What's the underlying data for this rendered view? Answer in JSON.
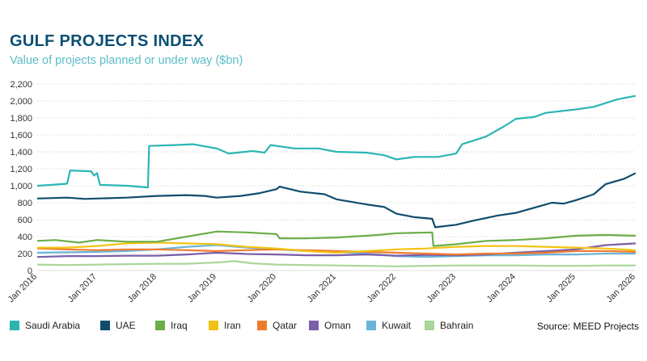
{
  "chart_data": {
    "type": "line",
    "title": "GULF PROJECTS INDEX",
    "subtitle": "Value of projects planned or under way ($bn)",
    "source": "Source: MEED Projects",
    "x_start": 2016.0,
    "x_end": 2026.0,
    "xlim": [
      2016.0,
      2026.0
    ],
    "ylim": [
      0,
      2200
    ],
    "y_ticks": [
      0,
      200,
      400,
      600,
      800,
      1000,
      1200,
      1400,
      1600,
      1800,
      2000,
      2200
    ],
    "y_tick_labels": [
      "0",
      "200",
      "400",
      "600",
      "800",
      "1,000",
      "1,200",
      "1,400",
      "1,600",
      "1,800",
      "2,000",
      "2,200"
    ],
    "x_ticks": [
      2016,
      2017,
      2018,
      2019,
      2020,
      2021,
      2022,
      2023,
      2024,
      2025,
      2026
    ],
    "x_tick_labels": [
      "Jan 2016",
      "Jan 2017",
      "Jan 2018",
      "Jan 2019",
      "Jan 2020",
      "Jan 2021",
      "Jan 2022",
      "Jan 2023",
      "Jan 2024",
      "Jan 2025",
      "Jan 2026"
    ],
    "grid": true,
    "legend_position": "bottom",
    "series": [
      {
        "name": "Saudi Arabia",
        "color": "#2bb5b3",
        "points": [
          [
            2016.0,
            1000
          ],
          [
            2016.25,
            1010
          ],
          [
            2016.5,
            1025
          ],
          [
            2016.55,
            1180
          ],
          [
            2016.9,
            1170
          ],
          [
            2016.95,
            1120
          ],
          [
            2017.0,
            1150
          ],
          [
            2017.05,
            1010
          ],
          [
            2017.5,
            1000
          ],
          [
            2017.85,
            980
          ],
          [
            2017.87,
            1470
          ],
          [
            2018.3,
            1480
          ],
          [
            2018.6,
            1490
          ],
          [
            2019.0,
            1440
          ],
          [
            2019.2,
            1380
          ],
          [
            2019.6,
            1410
          ],
          [
            2019.8,
            1390
          ],
          [
            2019.9,
            1480
          ],
          [
            2020.3,
            1440
          ],
          [
            2020.7,
            1440
          ],
          [
            2021.0,
            1400
          ],
          [
            2021.5,
            1390
          ],
          [
            2021.8,
            1360
          ],
          [
            2022.0,
            1310
          ],
          [
            2022.3,
            1340
          ],
          [
            2022.7,
            1340
          ],
          [
            2023.0,
            1380
          ],
          [
            2023.1,
            1490
          ],
          [
            2023.5,
            1580
          ],
          [
            2023.8,
            1700
          ],
          [
            2024.0,
            1790
          ],
          [
            2024.3,
            1810
          ],
          [
            2024.5,
            1860
          ],
          [
            2025.0,
            1900
          ],
          [
            2025.3,
            1930
          ],
          [
            2025.7,
            2020
          ],
          [
            2026.0,
            2060
          ]
        ]
      },
      {
        "name": "UAE",
        "color": "#0e4c6e",
        "points": [
          [
            2016.0,
            850
          ],
          [
            2016.5,
            860
          ],
          [
            2016.8,
            845
          ],
          [
            2017.0,
            850
          ],
          [
            2017.5,
            860
          ],
          [
            2018.0,
            880
          ],
          [
            2018.5,
            890
          ],
          [
            2018.8,
            880
          ],
          [
            2019.0,
            860
          ],
          [
            2019.4,
            880
          ],
          [
            2019.7,
            910
          ],
          [
            2020.0,
            960
          ],
          [
            2020.05,
            990
          ],
          [
            2020.4,
            930
          ],
          [
            2020.8,
            900
          ],
          [
            2021.0,
            840
          ],
          [
            2021.5,
            780
          ],
          [
            2021.8,
            750
          ],
          [
            2022.0,
            670
          ],
          [
            2022.3,
            630
          ],
          [
            2022.6,
            610
          ],
          [
            2022.65,
            510
          ],
          [
            2023.0,
            540
          ],
          [
            2023.3,
            590
          ],
          [
            2023.7,
            650
          ],
          [
            2024.0,
            680
          ],
          [
            2024.3,
            740
          ],
          [
            2024.6,
            800
          ],
          [
            2024.8,
            790
          ],
          [
            2025.0,
            830
          ],
          [
            2025.3,
            900
          ],
          [
            2025.5,
            1020
          ],
          [
            2025.8,
            1080
          ],
          [
            2026.0,
            1150
          ]
        ]
      },
      {
        "name": "Iraq",
        "color": "#6bad4a",
        "points": [
          [
            2016.0,
            350
          ],
          [
            2016.3,
            360
          ],
          [
            2016.7,
            330
          ],
          [
            2017.0,
            360
          ],
          [
            2017.5,
            340
          ],
          [
            2018.0,
            340
          ],
          [
            2018.5,
            400
          ],
          [
            2019.0,
            460
          ],
          [
            2019.5,
            450
          ],
          [
            2020.0,
            430
          ],
          [
            2020.05,
            380
          ],
          [
            2020.5,
            380
          ],
          [
            2021.0,
            390
          ],
          [
            2021.5,
            410
          ],
          [
            2021.7,
            420
          ],
          [
            2022.0,
            440
          ],
          [
            2022.6,
            450
          ],
          [
            2022.62,
            290
          ],
          [
            2023.0,
            310
          ],
          [
            2023.5,
            350
          ],
          [
            2024.0,
            360
          ],
          [
            2024.5,
            380
          ],
          [
            2025.0,
            410
          ],
          [
            2025.5,
            420
          ],
          [
            2026.0,
            410
          ]
        ]
      },
      {
        "name": "Iran",
        "color": "#f2c314",
        "points": [
          [
            2016.0,
            270
          ],
          [
            2016.5,
            270
          ],
          [
            2017.0,
            290
          ],
          [
            2017.5,
            320
          ],
          [
            2018.0,
            330
          ],
          [
            2018.5,
            320
          ],
          [
            2019.0,
            310
          ],
          [
            2019.5,
            280
          ],
          [
            2020.0,
            260
          ],
          [
            2020.5,
            230
          ],
          [
            2021.0,
            210
          ],
          [
            2021.5,
            230
          ],
          [
            2022.0,
            250
          ],
          [
            2022.5,
            260
          ],
          [
            2023.0,
            280
          ],
          [
            2023.5,
            290
          ],
          [
            2024.0,
            290
          ],
          [
            2024.5,
            280
          ],
          [
            2025.0,
            270
          ],
          [
            2025.5,
            260
          ],
          [
            2026.0,
            240
          ]
        ]
      },
      {
        "name": "Qatar",
        "color": "#ef7c2e",
        "points": [
          [
            2016.0,
            260
          ],
          [
            2016.5,
            250
          ],
          [
            2017.0,
            240
          ],
          [
            2017.5,
            250
          ],
          [
            2018.0,
            250
          ],
          [
            2018.5,
            240
          ],
          [
            2019.0,
            230
          ],
          [
            2019.5,
            240
          ],
          [
            2020.0,
            250
          ],
          [
            2020.5,
            240
          ],
          [
            2021.0,
            230
          ],
          [
            2021.5,
            220
          ],
          [
            2022.0,
            210
          ],
          [
            2022.5,
            200
          ],
          [
            2023.0,
            190
          ],
          [
            2023.5,
            200
          ],
          [
            2024.0,
            200
          ],
          [
            2024.5,
            210
          ],
          [
            2025.0,
            230
          ],
          [
            2025.5,
            230
          ],
          [
            2026.0,
            220
          ]
        ]
      },
      {
        "name": "Oman",
        "color": "#7a5ea8",
        "points": [
          [
            2016.0,
            160
          ],
          [
            2016.5,
            170
          ],
          [
            2017.0,
            170
          ],
          [
            2017.5,
            175
          ],
          [
            2018.0,
            175
          ],
          [
            2018.5,
            190
          ],
          [
            2019.0,
            210
          ],
          [
            2019.5,
            195
          ],
          [
            2020.0,
            190
          ],
          [
            2020.5,
            180
          ],
          [
            2021.0,
            180
          ],
          [
            2021.5,
            190
          ],
          [
            2022.0,
            175
          ],
          [
            2022.5,
            185
          ],
          [
            2023.0,
            180
          ],
          [
            2023.5,
            190
          ],
          [
            2024.0,
            210
          ],
          [
            2024.5,
            230
          ],
          [
            2025.0,
            250
          ],
          [
            2025.5,
            300
          ],
          [
            2026.0,
            320
          ]
        ]
      },
      {
        "name": "Kuwait",
        "color": "#6ab4d9",
        "points": [
          [
            2016.0,
            210
          ],
          [
            2016.5,
            215
          ],
          [
            2017.0,
            220
          ],
          [
            2017.5,
            230
          ],
          [
            2018.0,
            250
          ],
          [
            2018.5,
            280
          ],
          [
            2019.0,
            300
          ],
          [
            2019.5,
            270
          ],
          [
            2020.0,
            250
          ],
          [
            2020.5,
            230
          ],
          [
            2021.0,
            220
          ],
          [
            2021.5,
            200
          ],
          [
            2022.0,
            170
          ],
          [
            2022.5,
            160
          ],
          [
            2023.0,
            170
          ],
          [
            2023.5,
            180
          ],
          [
            2024.0,
            180
          ],
          [
            2024.5,
            190
          ],
          [
            2025.0,
            190
          ],
          [
            2025.5,
            200
          ],
          [
            2026.0,
            200
          ]
        ]
      },
      {
        "name": "Bahrain",
        "color": "#a9d69a",
        "points": [
          [
            2016.0,
            70
          ],
          [
            2016.5,
            65
          ],
          [
            2017.0,
            70
          ],
          [
            2017.5,
            75
          ],
          [
            2018.0,
            80
          ],
          [
            2018.5,
            80
          ],
          [
            2019.0,
            95
          ],
          [
            2019.3,
            110
          ],
          [
            2019.6,
            85
          ],
          [
            2020.0,
            70
          ],
          [
            2020.5,
            65
          ],
          [
            2021.0,
            60
          ],
          [
            2021.5,
            55
          ],
          [
            2022.0,
            50
          ],
          [
            2022.5,
            55
          ],
          [
            2023.0,
            60
          ],
          [
            2023.5,
            60
          ],
          [
            2024.0,
            60
          ],
          [
            2024.5,
            55
          ],
          [
            2025.0,
            55
          ],
          [
            2025.5,
            60
          ],
          [
            2026.0,
            60
          ]
        ]
      }
    ]
  }
}
